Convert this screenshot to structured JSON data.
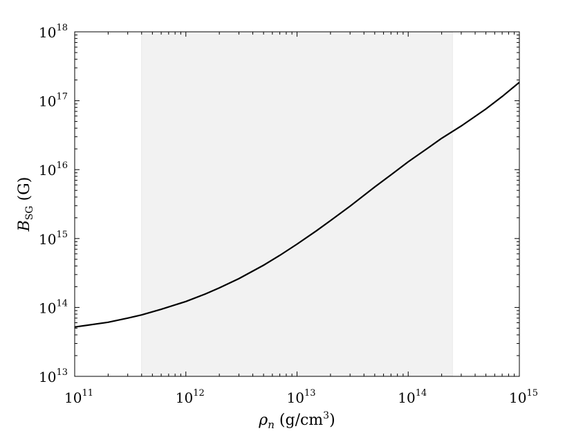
{
  "chart_data": {
    "type": "line",
    "title": "",
    "xlabel": {
      "symbol": "ρ",
      "subscript": "n",
      "unit_open": " (g/cm",
      "unit_sup": "3",
      "unit_close": ")"
    },
    "ylabel": {
      "symbol": "B",
      "subscript": "SG",
      "unit": " (G)"
    },
    "x_scale": "log",
    "y_scale": "log",
    "xlim": [
      100000000000.0,
      1000000000000000.0
    ],
    "ylim": [
      10000000000000.0,
      1e+18
    ],
    "x_ticks": [
      {
        "base": "10",
        "exp": "11",
        "value": 100000000000.0
      },
      {
        "base": "10",
        "exp": "12",
        "value": 1000000000000.0
      },
      {
        "base": "10",
        "exp": "13",
        "value": 10000000000000.0
      },
      {
        "base": "10",
        "exp": "14",
        "value": 100000000000000.0
      },
      {
        "base": "10",
        "exp": "15",
        "value": 1000000000000000.0
      }
    ],
    "y_ticks": [
      {
        "base": "10",
        "exp": "13",
        "value": 10000000000000.0
      },
      {
        "base": "10",
        "exp": "14",
        "value": 100000000000000.0
      },
      {
        "base": "10",
        "exp": "15",
        "value": 1000000000000000.0
      },
      {
        "base": "10",
        "exp": "16",
        "value": 1e+16
      },
      {
        "base": "10",
        "exp": "17",
        "value": 1e+17
      },
      {
        "base": "10",
        "exp": "18",
        "value": 1e+18
      }
    ],
    "shaded_region": {
      "x_start": 400000000000.0,
      "x_end": 250000000000000.0,
      "color": "#f2f2f2"
    },
    "grid": false,
    "series": [
      {
        "color": "#000000",
        "x": [
          100000000000.0,
          200000000000.0,
          300000000000.0,
          400000000000.0,
          600000000000.0,
          1000000000000.0,
          1500000000000.0,
          2000000000000.0,
          3000000000000.0,
          5000000000000.0,
          7000000000000.0,
          10000000000000.0,
          15000000000000.0,
          20000000000000.0,
          30000000000000.0,
          50000000000000.0,
          70000000000000.0,
          100000000000000.0,
          150000000000000.0,
          200000000000000.0,
          300000000000000.0,
          500000000000000.0,
          700000000000000.0,
          1000000000000000.0
        ],
        "y": [
          52000000000000.0,
          61000000000000.0,
          70000000000000.0,
          78000000000000.0,
          94000000000000.0,
          122000000000000.0,
          157000000000000.0,
          192000000000000.0,
          262000000000000.0,
          410000000000000.0,
          570000000000000.0,
          830000000000000.0,
          1300000000000000.0,
          1820000000000000.0,
          2950000000000000.0,
          5600000000000000.0,
          8400000000000000.0,
          1.3e+16,
          2.05e+16,
          2.85e+16,
          4.3e+16,
          7.6e+16,
          1.15e+17,
          1.85e+17
        ]
      }
    ]
  }
}
